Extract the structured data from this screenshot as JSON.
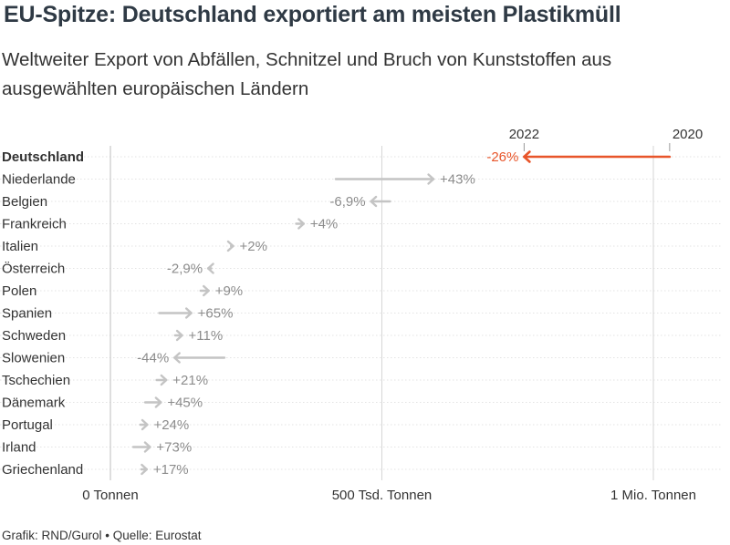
{
  "title": "EU-Spitze: Deutschland exportiert am meisten Plastikmüll",
  "subtitle": "Weltweiter Export von Abfällen, Schnitzel und Bruch von Kunststoffen aus ausgewählten europäischen Ländern",
  "footer": "Grafik: RND/Gurol • Quelle: Eurostat",
  "colors": {
    "highlight": "#e8552a",
    "arrow": "#c4c4c4",
    "label": "#8c8c8c",
    "text": "#333333",
    "grid": "#d6d6d6"
  },
  "chart_data": {
    "type": "arrow",
    "unit": "Tonnen",
    "xlim": [
      0,
      1120000
    ],
    "x_ticks": [
      {
        "value": 0,
        "label": "0 Tonnen"
      },
      {
        "value": 500000,
        "label": "500 Tsd. Tonnen"
      },
      {
        "value": 1000000,
        "label": "1 Mio. Tonnen"
      }
    ],
    "legend": {
      "start_label": "2020",
      "end_label": "2022"
    },
    "series": [
      {
        "country": "Deutschland",
        "v2020": 1030000,
        "v2022": 762000,
        "change": "-26%",
        "highlight": true
      },
      {
        "country": "Niederlande",
        "v2020": 415000,
        "v2022": 595000,
        "change": "+43%"
      },
      {
        "country": "Belgien",
        "v2020": 515000,
        "v2022": 480000,
        "change": "-6,9%"
      },
      {
        "country": "Frankreich",
        "v2020": 342000,
        "v2022": 356000,
        "change": "+4%"
      },
      {
        "country": "Italien",
        "v2020": 222000,
        "v2022": 226000,
        "change": "+2%"
      },
      {
        "country": "Österreich",
        "v2020": 186000,
        "v2022": 180000,
        "change": "-2,9%"
      },
      {
        "country": "Polen",
        "v2020": 166000,
        "v2022": 181000,
        "change": "+9%"
      },
      {
        "country": "Spanien",
        "v2020": 90000,
        "v2022": 149000,
        "change": "+65%"
      },
      {
        "country": "Schweden",
        "v2020": 119000,
        "v2022": 132000,
        "change": "+11%"
      },
      {
        "country": "Slowenien",
        "v2020": 210000,
        "v2022": 118000,
        "change": "-44%"
      },
      {
        "country": "Tschechien",
        "v2020": 85000,
        "v2022": 103000,
        "change": "+21%"
      },
      {
        "country": "Dänemark",
        "v2020": 64000,
        "v2022": 93000,
        "change": "+45%"
      },
      {
        "country": "Portugal",
        "v2020": 55000,
        "v2022": 68000,
        "change": "+24%"
      },
      {
        "country": "Irland",
        "v2020": 42000,
        "v2022": 73000,
        "change": "+73%"
      },
      {
        "country": "Griechenland",
        "v2020": 57000,
        "v2022": 67000,
        "change": "+17%"
      }
    ]
  }
}
